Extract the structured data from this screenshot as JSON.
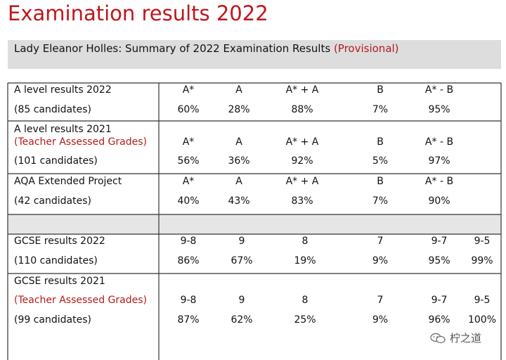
{
  "title": "Examination results 2022",
  "subtitle": {
    "main": "Lady Eleanor Holles: Summary of 2022 Examination Results",
    "status": "(Provisional)"
  },
  "sections": {
    "alevel2022": {
      "title": "A level results 2022",
      "candidates": "(85 candidates)",
      "headers": [
        "A*",
        "A",
        "A* + A",
        "B",
        "A* - B"
      ],
      "values": [
        "60%",
        "28%",
        "88%",
        "7%",
        "95%"
      ]
    },
    "alevel2021": {
      "title": "A level results 2021",
      "note": "(Teacher Assessed Grades)",
      "candidates": "(101 candidates)",
      "headers": [
        "A*",
        "A",
        "A* + A",
        "B",
        "A* - B"
      ],
      "values": [
        "56%",
        "36%",
        "92%",
        "5%",
        "97%"
      ]
    },
    "epq": {
      "title": "AQA Extended Project",
      "candidates": "(42 candidates)",
      "headers": [
        "A*",
        "A",
        "A* + A",
        "B",
        "A* - B"
      ],
      "values": [
        "40%",
        "43%",
        "83%",
        "7%",
        "90%"
      ]
    },
    "gcse2022": {
      "title": "GCSE results 2022",
      "candidates": "(110 candidates)",
      "headers": [
        "9-8",
        "9",
        "8",
        "7",
        "9-7",
        "9-5"
      ],
      "values": [
        "86%",
        "67%",
        "19%",
        "9%",
        "95%",
        "99%"
      ]
    },
    "gcse2021": {
      "title": "GCSE results 2021",
      "note": "(Teacher Assessed Grades)",
      "candidates": "(99 candidates)",
      "headers": [
        "9-8",
        "9",
        "8",
        "7",
        "9-7",
        "9-5"
      ],
      "values": [
        "87%",
        "62%",
        "25%",
        "9%",
        "96%",
        "100%"
      ]
    }
  },
  "watermark": {
    "text": "柠之道",
    "icon": "wechat-icon"
  },
  "colors": {
    "accent": "#c0161c",
    "band": "#dddddd"
  }
}
